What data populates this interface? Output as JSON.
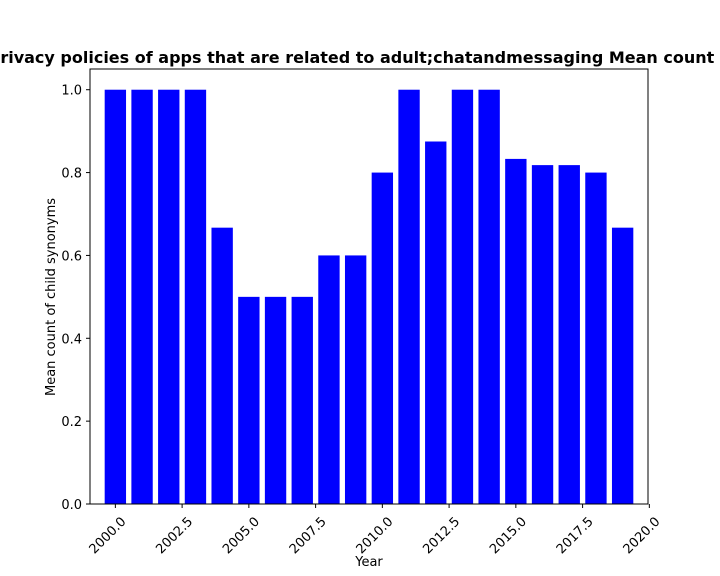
{
  "chart_data": {
    "type": "bar",
    "title": "Mean count of child synonyms in privacy policies of apps that are related to adult;chatandmessaging Mean count of child synonyms in privacy policies",
    "xlabel": "Year",
    "ylabel": "Mean count of child synonyms",
    "x": [
      2000,
      2001,
      2002,
      2003,
      2004,
      2005,
      2006,
      2007,
      2008,
      2009,
      2010,
      2011,
      2012,
      2013,
      2014,
      2015,
      2016,
      2017,
      2018,
      2019
    ],
    "values": [
      1.0,
      1.0,
      1.0,
      1.0,
      0.667,
      0.5,
      0.5,
      0.5,
      0.6,
      0.6,
      0.8,
      1.0,
      0.875,
      1.0,
      1.0,
      0.833,
      0.818,
      0.818,
      0.8,
      0.667
    ],
    "xlim": [
      1999.05,
      2019.95
    ],
    "ylim": [
      0,
      1.05
    ],
    "xticks": [
      "2000.0",
      "2002.5",
      "2005.0",
      "2007.5",
      "2010.0",
      "2012.5",
      "2015.0",
      "2017.5",
      "2020.0"
    ],
    "xtick_values": [
      2000,
      2002.5,
      2005,
      2007.5,
      2010,
      2012.5,
      2015,
      2017.5,
      2020
    ],
    "yticks": [
      "0.0",
      "0.2",
      "0.4",
      "0.6",
      "0.8",
      "1.0"
    ],
    "ytick_values": [
      0,
      0.2,
      0.4,
      0.6,
      0.8,
      1.0
    ],
    "bar_color": "#0000ff",
    "grid": false,
    "legend": "none"
  }
}
